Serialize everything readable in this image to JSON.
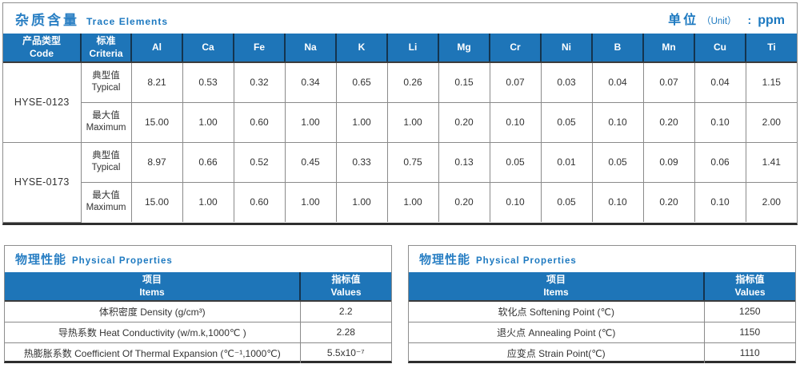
{
  "trace": {
    "title_cn": "杂质含量",
    "title_en": "Trace Elements",
    "unit_cn": "单位",
    "unit_en": "（Unit）",
    "unit_sep": ":",
    "unit_value": "ppm",
    "col_code_cn": "产品类型",
    "col_code_en": "Code",
    "col_criteria_cn": "标准",
    "col_criteria_en": "Criteria",
    "label_typical_cn": "典型值",
    "label_typical_en": "Typical",
    "label_maximum_cn": "最大值",
    "label_maximum_en": "Maximum",
    "elements": [
      "Al",
      "Ca",
      "Fe",
      "Na",
      "K",
      "Li",
      "Mg",
      "Cr",
      "Ni",
      "B",
      "Mn",
      "Cu",
      "Ti"
    ],
    "products": [
      {
        "code": "HYSE-0123",
        "typical": [
          "8.21",
          "0.53",
          "0.32",
          "0.34",
          "0.65",
          "0.26",
          "0.15",
          "0.07",
          "0.03",
          "0.04",
          "0.07",
          "0.04",
          "1.15"
        ],
        "maximum": [
          "15.00",
          "1.00",
          "0.60",
          "1.00",
          "1.00",
          "1.00",
          "0.20",
          "0.10",
          "0.05",
          "0.10",
          "0.20",
          "0.10",
          "2.00"
        ]
      },
      {
        "code": "HYSE-0173",
        "typical": [
          "8.97",
          "0.66",
          "0.52",
          "0.45",
          "0.33",
          "0.75",
          "0.13",
          "0.05",
          "0.01",
          "0.05",
          "0.09",
          "0.06",
          "1.41"
        ],
        "maximum": [
          "15.00",
          "1.00",
          "0.60",
          "1.00",
          "1.00",
          "1.00",
          "0.20",
          "0.10",
          "0.05",
          "0.10",
          "0.20",
          "0.10",
          "2.00"
        ]
      }
    ]
  },
  "physical_left": {
    "title_cn": "物理性能",
    "title_en": "Physical Properties",
    "col_item_cn": "项目",
    "col_item_en": "Items",
    "col_value_cn": "指标值",
    "col_value_en": "Values",
    "rows": [
      {
        "item": "体积密度 Density (g/cm³)",
        "value": "2.2"
      },
      {
        "item": "导热系数 Heat Conductivity (w/m.k,1000℃ )",
        "value": "2.28"
      },
      {
        "item": "热膨胀系数 Coefficient Of Thermal Expansion (℃⁻¹,1000℃)",
        "value": "5.5x10⁻⁷"
      }
    ]
  },
  "physical_right": {
    "title_cn": "物理性能",
    "title_en": "Physical Properties",
    "col_item_cn": "项目",
    "col_item_en": "Items",
    "col_value_cn": "指标值",
    "col_value_en": "Values",
    "rows": [
      {
        "item": "软化点 Softening Point (℃)",
        "value": "1250"
      },
      {
        "item": "退火点 Annealing Point (℃)",
        "value": "1150"
      },
      {
        "item": "应变点 Strain Point(℃)",
        "value": "1110"
      }
    ]
  }
}
